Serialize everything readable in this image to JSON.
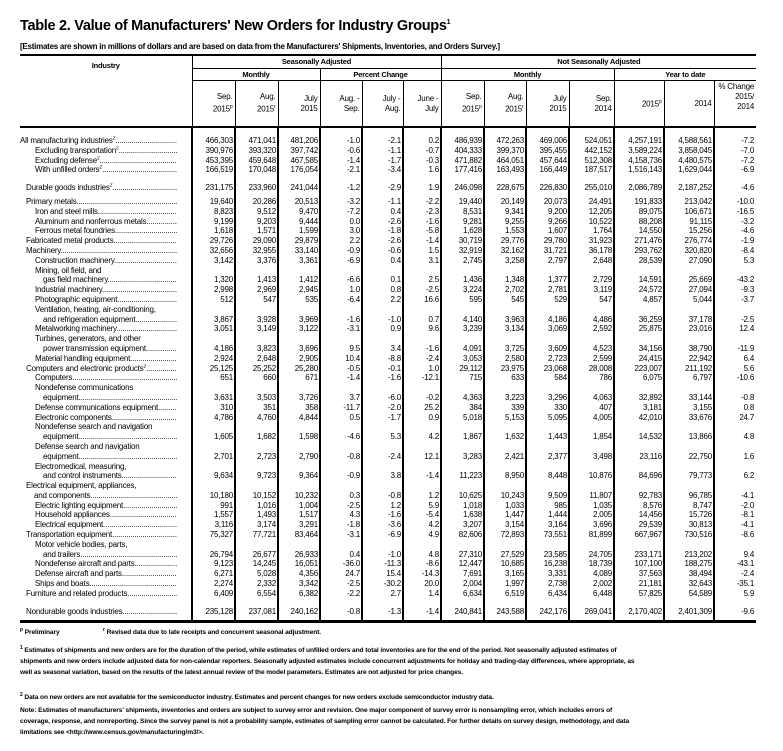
{
  "title": {
    "text": "Table 2.  Value of Manufacturers' New Orders for Industry Groups",
    "sup": "1"
  },
  "subtitle": "[Estimates are shown in millions of dollars and are based on data from the Manufacturers' Shipments, Inventories, and Orders Survey.]",
  "header": {
    "industry": "Industry",
    "seasonally_adjusted": "Seasonally Adjusted",
    "not_seasonally_adjusted": "Not Seasonally Adjusted",
    "monthly": "Monthly",
    "percent_change": "Percent Change",
    "year_to_date": "Year to date",
    "columns": [
      {
        "l1": "Sep.",
        "l2": "2015",
        "sup": "p"
      },
      {
        "l1": "Aug.",
        "l2": "2015",
        "sup": "r"
      },
      {
        "l1": "July",
        "l2": "2015",
        "sup": ""
      },
      {
        "l1": "Aug. -",
        "l2": "Sep.",
        "sup": ""
      },
      {
        "l1": "July -",
        "l2": "Aug.",
        "sup": ""
      },
      {
        "l1": "June -",
        "l2": "July",
        "sup": ""
      },
      {
        "l1": "Sep.",
        "l2": "2015",
        "sup": "p"
      },
      {
        "l1": "Aug.",
        "l2": "2015",
        "sup": "r"
      },
      {
        "l1": "July",
        "l2": "2015",
        "sup": ""
      },
      {
        "l1": "Sep.",
        "l2": "2014",
        "sup": ""
      },
      {
        "l1": "",
        "l2": "2015",
        "sup": "p"
      },
      {
        "l1": "",
        "l2": "2014",
        "sup": ""
      },
      {
        "l1": "% Change",
        "l2": "2015/",
        "l3": "2014",
        "sup": ""
      }
    ]
  },
  "rows": [
    {
      "label": [
        "All manufacturing industries"
      ],
      "sup": "2",
      "indent": 0,
      "style": "first",
      "values": [
        "466,303",
        "471,041",
        "481,206",
        "-1.0",
        "-2.1",
        "0.2",
        "486,939",
        "472,263",
        "469,006",
        "524,051",
        "4,257,191",
        "4,588,561",
        "-7.2"
      ]
    },
    {
      "label": [
        "Excluding transportation"
      ],
      "sup": "2",
      "indent": 2,
      "values": [
        "390,976",
        "393,320",
        "397,742",
        "-0.6",
        "-1.1",
        "-0.7",
        "404,333",
        "399,370",
        "395,455",
        "442,152",
        "3,589,224",
        "3,858,045",
        "-7.0"
      ]
    },
    {
      "label": [
        "Excluding defense"
      ],
      "sup": "2",
      "indent": 2,
      "values": [
        "453,395",
        "459,648",
        "467,585",
        "-1.4",
        "-1.7",
        "-0.3",
        "471,882",
        "464,051",
        "457,644",
        "512,308",
        "4,158,736",
        "4,480,575",
        "-7.2"
      ]
    },
    {
      "label": [
        "With unfilled orders"
      ],
      "sup": "2",
      "indent": 2,
      "values": [
        "166,519",
        "170,048",
        "176,054",
        "-2.1",
        "-3.4",
        "1.6",
        "177,416",
        "163,493",
        "166,449",
        "187,517",
        "1,516,143",
        "1,629,044",
        "-6.9"
      ]
    },
    {
      "label": [
        "Durable goods industries"
      ],
      "sup": "2",
      "indent": 1,
      "style": "gap",
      "values": [
        "231,175",
        "233,960",
        "241,044",
        "-1.2",
        "-2.9",
        "1.9",
        "246,098",
        "228,675",
        "226,830",
        "255,010",
        "2,086,789",
        "2,187,252",
        "-4.6"
      ]
    },
    {
      "label": [
        "Primary metals"
      ],
      "indent": 1,
      "style": "gap2",
      "values": [
        "19,640",
        "20,286",
        "20,513",
        "-3.2",
        "-1.1",
        "-2.2",
        "19,440",
        "20,149",
        "20,073",
        "24,491",
        "191,833",
        "213,042",
        "-10.0"
      ]
    },
    {
      "label": [
        "Iron and steel mills"
      ],
      "indent": 2,
      "values": [
        "8,823",
        "9,512",
        "9,470",
        "-7.2",
        "0.4",
        "-2.3",
        "8,531",
        "9,341",
        "9,200",
        "12,205",
        "89,075",
        "106,671",
        "-16.5"
      ]
    },
    {
      "label": [
        "Aluminum and nonferrous metals"
      ],
      "indent": 2,
      "values": [
        "9,199",
        "9,203",
        "9,444",
        "0.0",
        "-2.6",
        "-1.6",
        "9,281",
        "9,255",
        "9,266",
        "10,522",
        "88,208",
        "91,115",
        "-3.2"
      ]
    },
    {
      "label": [
        "Ferrous metal foundries"
      ],
      "indent": 2,
      "values": [
        "1,618",
        "1,571",
        "1,599",
        "3.0",
        "-1.8",
        "-5.8",
        "1,628",
        "1,553",
        "1,607",
        "1,764",
        "14,550",
        "15,256",
        "-4.6"
      ]
    },
    {
      "label": [
        "Fabricated metal products"
      ],
      "indent": 1,
      "values": [
        "29,726",
        "29,090",
        "29,879",
        "2.2",
        "-2.6",
        "-1.4",
        "30,719",
        "29,776",
        "29,780",
        "31,923",
        "271,476",
        "276,774",
        "-1.9"
      ]
    },
    {
      "label": [
        "Machinery"
      ],
      "indent": 1,
      "values": [
        "32,656",
        "32,955",
        "33,140",
        "-0.9",
        "-0.6",
        "1.5",
        "32,919",
        "32,162",
        "31,721",
        "36,178",
        "293,762",
        "320,820",
        "-8.4"
      ]
    },
    {
      "label": [
        "Construction machinery"
      ],
      "indent": 2,
      "values": [
        "3,142",
        "3,376",
        "3,361",
        "-6.9",
        "0.4",
        "3.1",
        "2,745",
        "3,258",
        "2,797",
        "2,648",
        "28,539",
        "27,090",
        "5.3"
      ]
    },
    {
      "label": [
        "Mining, oil field, and",
        "gas field machinery"
      ],
      "indent": 2,
      "values": [
        "1,320",
        "1,413",
        "1,412",
        "-6.6",
        "0.1",
        "2.5",
        "1,436",
        "1,348",
        "1,377",
        "2,729",
        "14,591",
        "25,669",
        "-43.2"
      ]
    },
    {
      "label": [
        "Industrial machinery"
      ],
      "indent": 2,
      "values": [
        "2,998",
        "2,969",
        "2,945",
        "1.0",
        "0.8",
        "-2.5",
        "3,224",
        "2,702",
        "2,781",
        "3,119",
        "24,572",
        "27,094",
        "-9.3"
      ]
    },
    {
      "label": [
        "Photographic equipment"
      ],
      "indent": 2,
      "values": [
        "512",
        "547",
        "535",
        "-6.4",
        "2.2",
        "16.6",
        "595",
        "545",
        "529",
        "547",
        "4,857",
        "5,044",
        "-3.7"
      ]
    },
    {
      "label": [
        "Ventilation, heating, air-conditioning,",
        "and refrigeration equipment"
      ],
      "indent": 2,
      "values": [
        "3,867",
        "3,928",
        "3,969",
        "-1.6",
        "-1.0",
        "0.7",
        "4,140",
        "3,963",
        "4,186",
        "4,486",
        "36,259",
        "37,178",
        "-2.5"
      ]
    },
    {
      "label": [
        "Metalworking machinery"
      ],
      "indent": 2,
      "values": [
        "3,051",
        "3,149",
        "3,122",
        "-3.1",
        "0.9",
        "9.6",
        "3,239",
        "3,134",
        "3,069",
        "2,592",
        "25,875",
        "23,016",
        "12.4"
      ]
    },
    {
      "label": [
        "Turbines, generators, and other",
        "power transmission equipment"
      ],
      "indent": 2,
      "values": [
        "4,186",
        "3,823",
        "3,696",
        "9.5",
        "3.4",
        "-1.6",
        "4,091",
        "3,725",
        "3,609",
        "4,523",
        "34,156",
        "38,790",
        "-11.9"
      ]
    },
    {
      "label": [
        "Material handling equipment"
      ],
      "indent": 2,
      "values": [
        "2,924",
        "2,648",
        "2,905",
        "10.4",
        "-8.8",
        "-2.4",
        "3,053",
        "2,580",
        "2,723",
        "2,599",
        "24,415",
        "22,942",
        "6.4"
      ]
    },
    {
      "label": [
        "Computers and electronic products"
      ],
      "sup": "2",
      "indent": 1,
      "values": [
        "25,125",
        "25,252",
        "25,280",
        "-0.5",
        "-0.1",
        "1.0",
        "29,112",
        "23,975",
        "23,068",
        "28,008",
        "223,007",
        "211,192",
        "5.6"
      ]
    },
    {
      "label": [
        "Computers"
      ],
      "indent": 2,
      "values": [
        "651",
        "660",
        "671",
        "-1.4",
        "-1.6",
        "-12.1",
        "715",
        "633",
        "584",
        "786",
        "6,075",
        "6,797",
        "-10.6"
      ]
    },
    {
      "label": [
        "Nondefense communications",
        "equipment"
      ],
      "indent": 2,
      "values": [
        "3,631",
        "3,503",
        "3,726",
        "3.7",
        "-6.0",
        "-0.2",
        "4,363",
        "3,223",
        "3,296",
        "4,063",
        "32,892",
        "33,144",
        "-0.8"
      ]
    },
    {
      "label": [
        "Defense communications equipment"
      ],
      "indent": 2,
      "values": [
        "310",
        "351",
        "358",
        "-11.7",
        "-2.0",
        "25.2",
        "384",
        "339",
        "330",
        "407",
        "3,181",
        "3,155",
        "0.8"
      ]
    },
    {
      "label": [
        "Electronic components"
      ],
      "indent": 2,
      "values": [
        "4,786",
        "4,760",
        "4,844",
        "0.5",
        "-1.7",
        "0.9",
        "5,018",
        "5,153",
        "5,095",
        "4,005",
        "42,010",
        "33,676",
        "24.7"
      ]
    },
    {
      "label": [
        "Nondefense search and navigation",
        "equipment"
      ],
      "indent": 2,
      "values": [
        "1,605",
        "1,682",
        "1,598",
        "-4.6",
        "5.3",
        "4.2",
        "1,867",
        "1,632",
        "1,443",
        "1,854",
        "14,532",
        "13,866",
        "4.8"
      ]
    },
    {
      "label": [
        "Defense search and navigation",
        "equipment"
      ],
      "indent": 2,
      "values": [
        "2,701",
        "2,723",
        "2,790",
        "-0.8",
        "-2.4",
        "12.1",
        "3,283",
        "2,421",
        "2,377",
        "3,498",
        "23,116",
        "22,750",
        "1.6"
      ]
    },
    {
      "label": [
        "Electromedical, measuring,",
        "and control instruments"
      ],
      "indent": 2,
      "values": [
        "9,634",
        "9,723",
        "9,364",
        "-0.9",
        "3.8",
        "-1.4",
        "11,223",
        "8,950",
        "8,448",
        "10,876",
        "84,696",
        "79,773",
        "6.2"
      ]
    },
    {
      "label": [
        "Electrical equipment, appliances,",
        "and components"
      ],
      "indent": 1,
      "values": [
        "10,180",
        "10,152",
        "10,232",
        "0.3",
        "-0.8",
        "1.2",
        "10,625",
        "10,243",
        "9,509",
        "11,807",
        "92,783",
        "96,785",
        "-4.1"
      ]
    },
    {
      "label": [
        "Electric lighting equipment"
      ],
      "indent": 2,
      "values": [
        "991",
        "1,016",
        "1,004",
        "-2.5",
        "1.2",
        "5.9",
        "1,018",
        "1,033",
        "985",
        "1,035",
        "8,576",
        "8,747",
        "-2.0"
      ]
    },
    {
      "label": [
        "Household appliances"
      ],
      "indent": 2,
      "values": [
        "1,557",
        "1,493",
        "1,517",
        "4.3",
        "-1.6",
        "-5.4",
        "1,638",
        "1,447",
        "1,444",
        "2,005",
        "14,456",
        "15,726",
        "-8.1"
      ]
    },
    {
      "label": [
        "Electrical equipment"
      ],
      "indent": 2,
      "values": [
        "3,116",
        "3,174",
        "3,291",
        "-1.8",
        "-3.6",
        "4.2",
        "3,207",
        "3,154",
        "3,164",
        "3,696",
        "29,539",
        "30,813",
        "-4.1"
      ]
    },
    {
      "label": [
        "Transportation equipment"
      ],
      "indent": 1,
      "values": [
        "75,327",
        "77,721",
        "83,464",
        "-3.1",
        "-6.9",
        "4.9",
        "82,606",
        "72,893",
        "73,551",
        "81,899",
        "667,967",
        "730,516",
        "-8.6"
      ]
    },
    {
      "label": [
        "Motor vehicle bodies, parts,",
        "and trailers"
      ],
      "indent": 2,
      "values": [
        "26,794",
        "26,677",
        "26,933",
        "0.4",
        "-1.0",
        "4.8",
        "27,310",
        "27,529",
        "23,585",
        "24,705",
        "233,171",
        "213,202",
        "9.4"
      ]
    },
    {
      "label": [
        "Nondefense aircraft and parts"
      ],
      "indent": 2,
      "values": [
        "9,123",
        "14,245",
        "16,051",
        "-36.0",
        "-11.3",
        "-8.6",
        "12,447",
        "10,685",
        "16,238",
        "18,739",
        "107,100",
        "188,275",
        "-43.1"
      ]
    },
    {
      "label": [
        "Defense aircraft and parts"
      ],
      "indent": 2,
      "values": [
        "6,271",
        "5,028",
        "4,356",
        "24.7",
        "15.4",
        "-14.3",
        "7,691",
        "3,165",
        "3,331",
        "4,089",
        "37,563",
        "38,494",
        "-2.4"
      ]
    },
    {
      "label": [
        "Ships and boats"
      ],
      "indent": 2,
      "values": [
        "2,274",
        "2,332",
        "3,342",
        "-2.5",
        "-30.2",
        "20.0",
        "2,004",
        "1,997",
        "2,738",
        "2,002",
        "21,181",
        "32,643",
        "-35.1"
      ]
    },
    {
      "label": [
        "Furniture and related products"
      ],
      "indent": 1,
      "values": [
        "6,409",
        "6,554",
        "6,382",
        "-2.2",
        "2.7",
        "1.4",
        "6,634",
        "6,519",
        "6,434",
        "6,448",
        "57,825",
        "54,589",
        "5.9"
      ]
    },
    {
      "label": [
        "Nondurable goods industries"
      ],
      "indent": 1,
      "style": "gap end",
      "values": [
        "235,128",
        "237,081",
        "240,162",
        "-0.8",
        "-1.3",
        "-1.4",
        "240,841",
        "243,588",
        "242,176",
        "269,041",
        "2,170,402",
        "2,401,309",
        "-9.6"
      ]
    }
  ],
  "footnotes": {
    "preliminary_mark": "p",
    "preliminary": "Preliminary",
    "revised_mark": "r",
    "revised": "Revised data due to late receipts and concurrent seasonal adjustment.",
    "note1_mark": "1",
    "note1": "Estimates of shipments and new orders are for the duration of the period, while estimates of unfilled orders and total inventories are for the end of the period. Not seasonally adjusted estimates of shipments and new orders include adjusted data for non-calendar reporters. Seasonally adjusted estimates include concurrent adjustments for holiday and trading-day differences, where appropriate, as well as seasonal variation, based on the results of the latest annual review of the model  parameters. Estimates are not adjusted for price changes.",
    "note2_mark": "2",
    "note2": "Data on new orders are not available for the semiconductor industry.  Estimates and percent changes for new orders exclude semiconductor industry data.",
    "note": "Note:  Estimates of manufacturers' shipments, inventories and orders are subject to survey error and revision.  One major component of survey error is nonsampling error, which includes errors of coverage, response, and nonreporting.  Since the survey panel is not a probability sample, estimates of sampling error cannot be calculated.  For further details on survey design, methodology, and data limitations see <http://www.census.gov/manufacturing/m3/>."
  }
}
